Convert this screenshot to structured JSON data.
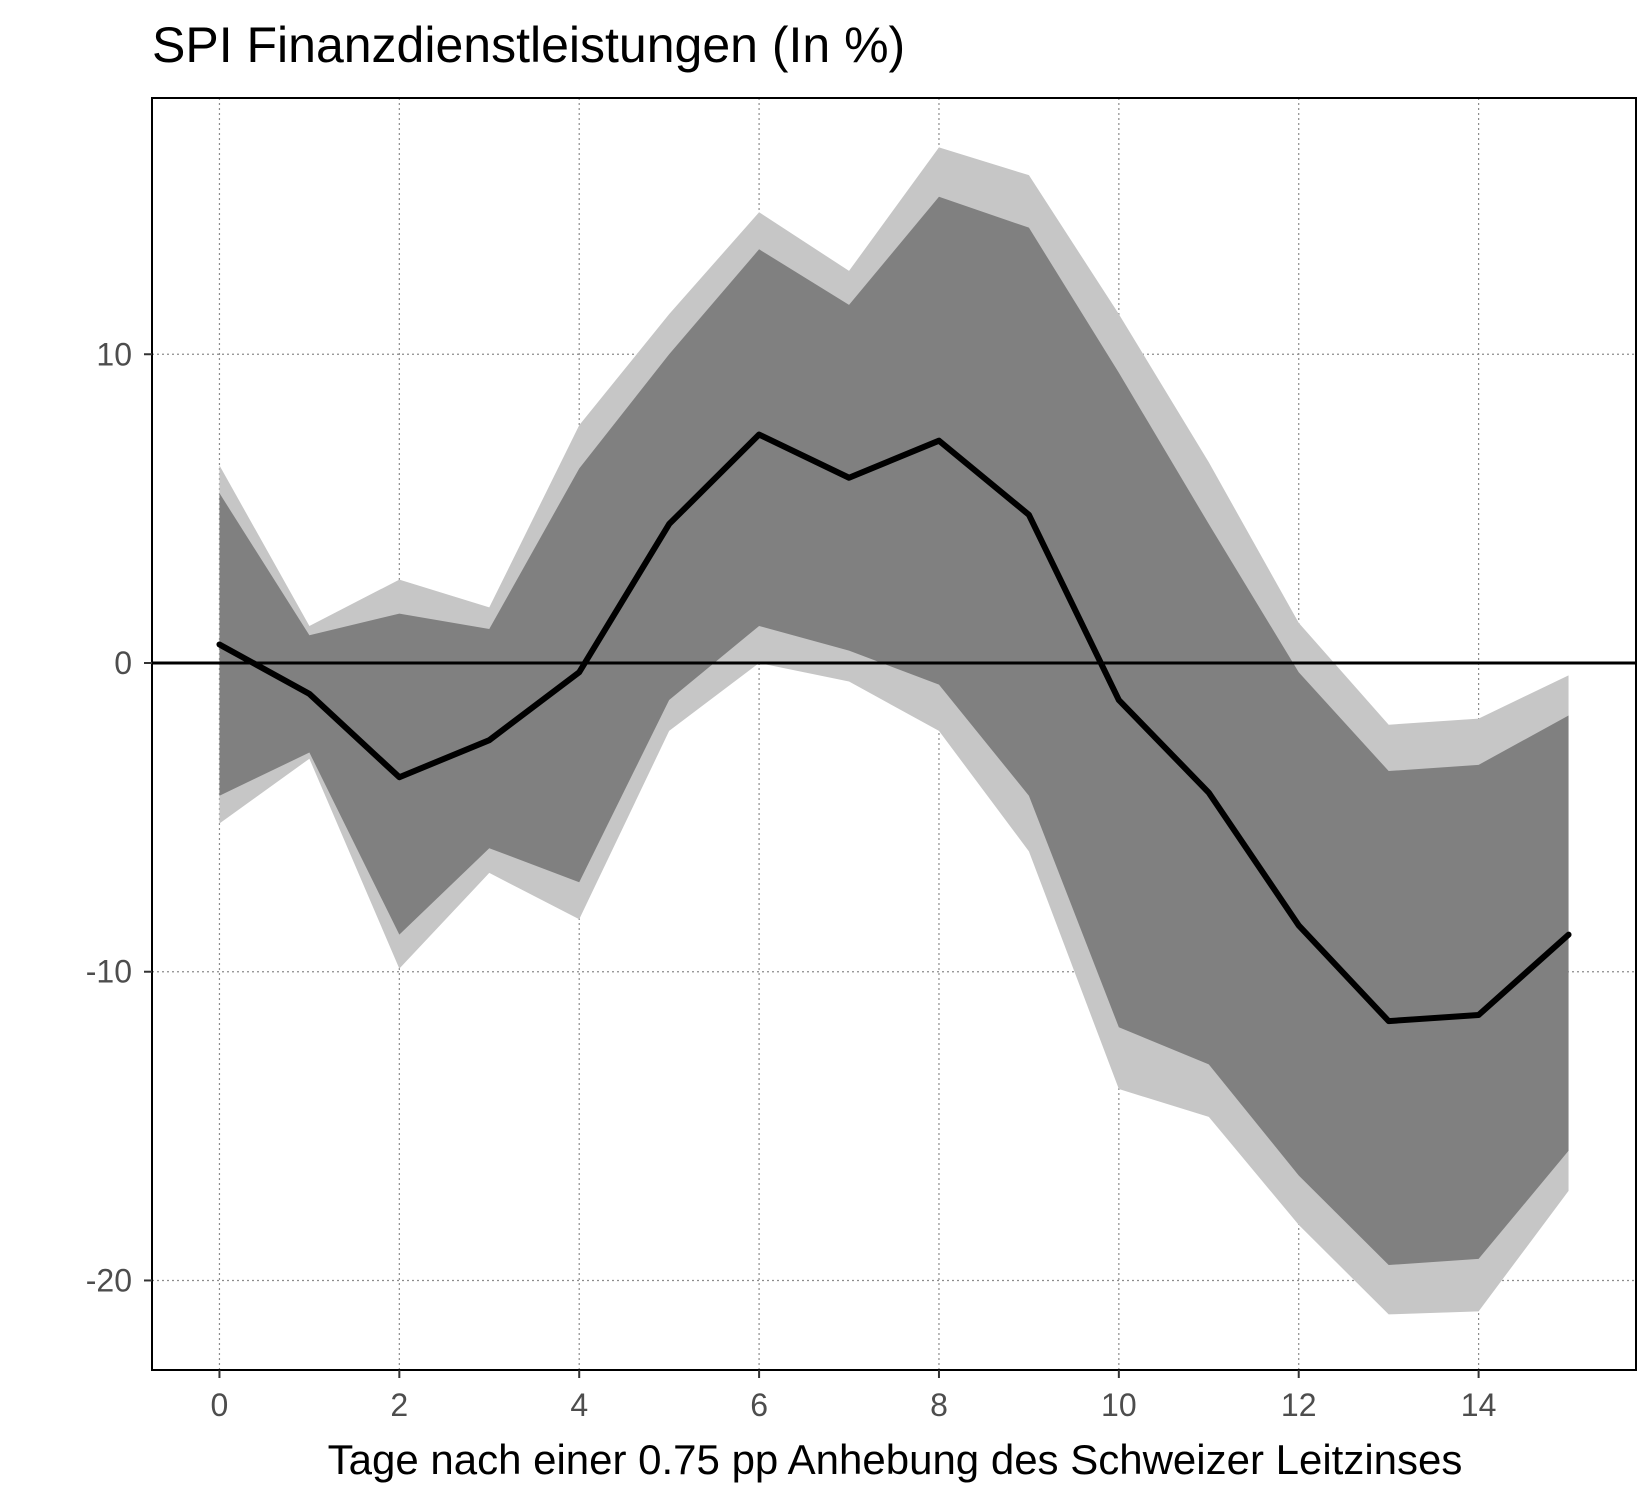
{
  "chart_data": {
    "type": "line",
    "title": "SPI Finanzdienstleistungen (In %)",
    "xlabel": "Tage nach einer 0.75 pp Anhebung des Schweizer Leitzinses",
    "ylabel": "",
    "xlim": [
      -0.75,
      15.75
    ],
    "ylim": [
      -22.9,
      18.3
    ],
    "x_ticks": [
      0,
      2,
      4,
      6,
      8,
      10,
      12,
      14
    ],
    "x_tick_labels": [
      "0",
      "2",
      "4",
      "6",
      "8",
      "10",
      "12",
      "14"
    ],
    "y_ticks": [
      -20,
      -10,
      0,
      10
    ],
    "y_tick_labels": [
      "-20",
      "-10",
      "0",
      "10"
    ],
    "grid": true,
    "reference_line": 0,
    "x": [
      0,
      1,
      2,
      3,
      4,
      5,
      6,
      7,
      8,
      9,
      10,
      11,
      12,
      13,
      14,
      15
    ],
    "series": [
      {
        "values": [
          0.6,
          -1.0,
          -3.7,
          -2.5,
          -0.3,
          4.5,
          7.4,
          6.0,
          7.2,
          4.8,
          -1.2,
          -4.2,
          -8.5,
          -11.6,
          -11.4,
          -8.8
        ]
      }
    ],
    "bands": [
      {
        "level": "outer",
        "upper": [
          6.4,
          1.2,
          2.7,
          1.8,
          7.7,
          11.3,
          14.6,
          12.7,
          16.7,
          15.8,
          11.3,
          6.5,
          1.3,
          -2.0,
          -1.8,
          -0.4
        ],
        "lower": [
          -5.2,
          -3.1,
          -9.9,
          -6.8,
          -8.3,
          -2.2,
          0.0,
          -0.6,
          -2.2,
          -6.1,
          -13.8,
          -14.7,
          -18.2,
          -21.1,
          -21.0,
          -17.1
        ]
      },
      {
        "level": "inner",
        "upper": [
          5.5,
          0.9,
          1.6,
          1.1,
          6.3,
          10.0,
          13.4,
          11.6,
          15.1,
          14.1,
          9.4,
          4.5,
          -0.3,
          -3.5,
          -3.3,
          -1.7
        ],
        "lower": [
          -4.3,
          -2.9,
          -8.8,
          -6.0,
          -7.1,
          -1.2,
          1.2,
          0.4,
          -0.7,
          -4.3,
          -11.8,
          -13.0,
          -16.6,
          -19.5,
          -19.3,
          -15.8
        ]
      }
    ],
    "colors": {
      "outer_band": "#c6c6c6",
      "inner_band": "#808080",
      "line": "#000000",
      "zero_line": "#000000",
      "grid": "#8c8c8c",
      "frame": "#000000",
      "tick_text": "#4d4d4d"
    }
  }
}
